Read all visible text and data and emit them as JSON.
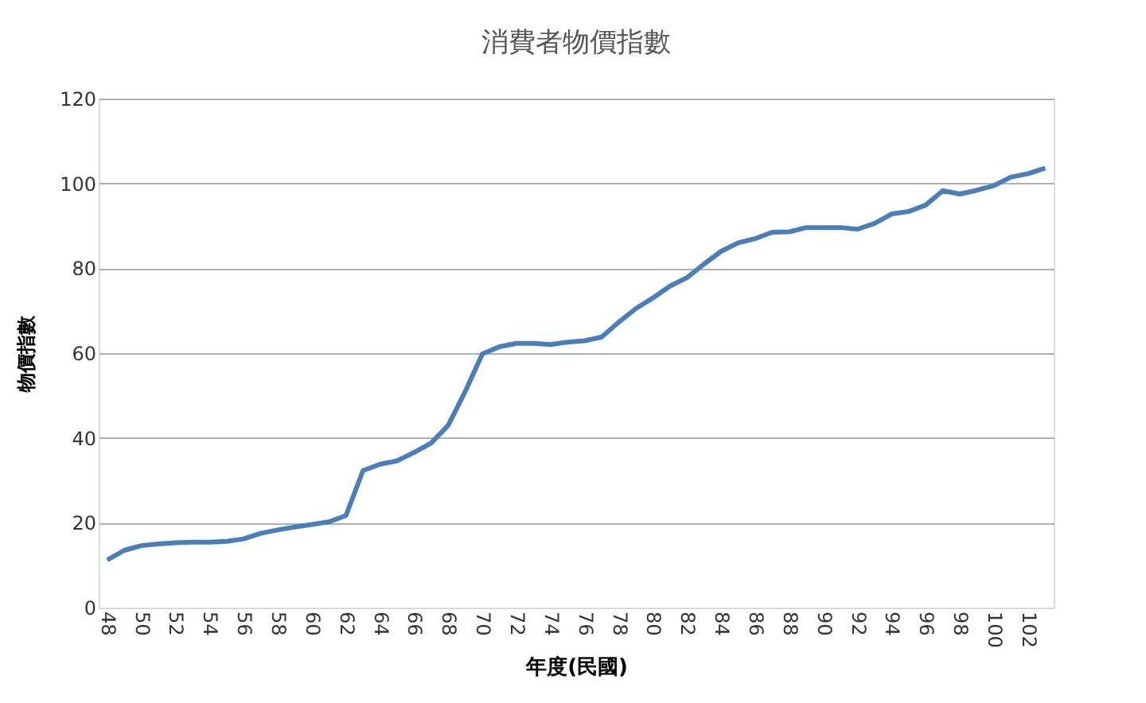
{
  "chart_data": {
    "type": "line",
    "title": "消費者物價指數",
    "xlabel": "年度(民國)",
    "ylabel": "物價指數",
    "categories": [
      "48",
      null,
      "50",
      null,
      "52",
      null,
      "54",
      null,
      "56",
      null,
      "58",
      null,
      "60",
      null,
      "62",
      null,
      "64",
      null,
      "66",
      null,
      "68",
      null,
      "70",
      null,
      "72",
      null,
      "74",
      null,
      "76",
      null,
      "78",
      null,
      "80",
      null,
      "82",
      null,
      "84",
      null,
      "86",
      null,
      "88",
      null,
      "90",
      null,
      "92",
      null,
      "94",
      null,
      "96",
      null,
      "98",
      null,
      "100",
      null,
      "102",
      null
    ],
    "series": [
      {
        "color": "#4a7ebb",
        "values": [
          11.2,
          13.5,
          14.6,
          15,
          15.3,
          15.4,
          15.4,
          15.6,
          16.2,
          17.5,
          18.3,
          19,
          19.6,
          20.2,
          21.7,
          32.3,
          33.8,
          34.6,
          36.6,
          38.8,
          43,
          51,
          59.8,
          61.5,
          62.3,
          62.3,
          62,
          62.6,
          62.9,
          63.8,
          67.3,
          70.5,
          73,
          75.8,
          77.8,
          81,
          84,
          86,
          87,
          88.5,
          88.6,
          89.6,
          89.6,
          89.6,
          89.2,
          90.6,
          92.8,
          93.4,
          94.9,
          98.3,
          97.5,
          98.4,
          99.5,
          101.5,
          102.3,
          103.6
        ]
      }
    ],
    "ylim": [
      0,
      120
    ],
    "yticks": [
      0,
      20,
      40,
      60,
      80,
      100,
      120
    ],
    "grid": "y",
    "marker": "none",
    "line_style": "solid"
  }
}
